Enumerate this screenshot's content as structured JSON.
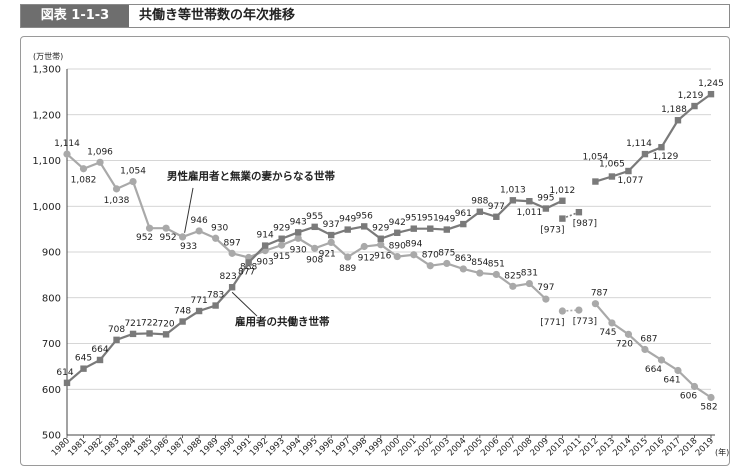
{
  "figure_number": "図表 1-1-3",
  "figure_title": "共働き等世帯数の年次推移",
  "chart_data": {
    "type": "line",
    "ylabel": "(万世帯)",
    "xunit": "(年)",
    "ylim": [
      500,
      1300
    ],
    "yticks": [
      "500",
      "600",
      "700",
      "800",
      "900",
      "1,000",
      "1,100",
      "1,200",
      "1,300"
    ],
    "categories": [
      "1980",
      "1981",
      "1982",
      "1983",
      "1984",
      "1985",
      "1986",
      "1987",
      "1988",
      "1989",
      "1990",
      "1991",
      "1992",
      "1993",
      "1994",
      "1995",
      "1996",
      "1997",
      "1998",
      "1999",
      "2000",
      "2001",
      "2002",
      "2003",
      "2004",
      "2005",
      "2006",
      "2007",
      "2008",
      "2009",
      "2010",
      "2011",
      "2012",
      "2013",
      "2014",
      "2015",
      "2016",
      "2017",
      "2018",
      "2019"
    ],
    "series": [
      {
        "name": "男性雇用者と無業の妻からなる世帯",
        "marker": "circle",
        "color": "#a9a9a9",
        "values": [
          1114,
          1082,
          1096,
          1038,
          1054,
          952,
          952,
          933,
          946,
          930,
          897,
          888,
          903,
          915,
          930,
          908,
          921,
          889,
          912,
          916,
          890,
          894,
          870,
          875,
          863,
          854,
          851,
          825,
          831,
          797,
          null,
          null,
          787,
          745,
          720,
          687,
          664,
          641,
          606,
          582
        ],
        "labels": [
          "1,114",
          "1,082",
          "1,096",
          "1,038",
          "1,054",
          "952",
          "952",
          "933",
          "946",
          "930",
          "897",
          "888",
          "903",
          "915",
          "930",
          "908",
          "921",
          "889",
          "912",
          "916",
          "890",
          "894",
          "870",
          "875",
          "863",
          "854",
          "851",
          "825",
          "831",
          "797",
          "",
          "",
          "787",
          "745",
          "720",
          "687",
          "664",
          "641",
          "606",
          "582"
        ],
        "bracketed": [
          {
            "year": "2010",
            "value": 771,
            "label": "[771]"
          },
          {
            "year": "2011",
            "value": 773,
            "label": "[773]"
          }
        ]
      },
      {
        "name": "雇用者の共働き世帯",
        "marker": "square",
        "color": "#7a7a7a",
        "values": [
          614,
          645,
          664,
          708,
          721,
          722,
          720,
          748,
          771,
          783,
          823,
          877,
          914,
          929,
          943,
          955,
          937,
          949,
          956,
          929,
          942,
          951,
          951,
          949,
          961,
          988,
          977,
          1013,
          1011,
          995,
          1012,
          null,
          1054,
          1065,
          1077,
          1114,
          1129,
          1188,
          1219,
          1245
        ],
        "labels": [
          "614",
          "645",
          "664",
          "708",
          "721",
          "722",
          "720",
          "748",
          "771",
          "783",
          "823",
          "877",
          "914",
          "929",
          "943",
          "955",
          "937",
          "949",
          "956",
          "929",
          "942",
          "951",
          "951",
          "949",
          "961",
          "988",
          "977",
          "1,013",
          "1,011",
          "995",
          "1,012",
          "",
          "1,054",
          "1,065",
          "1,077",
          "1,114",
          "1,129",
          "1,188",
          "1,219",
          "1,245"
        ],
        "bracketed": [
          {
            "year": "2010",
            "value": 973,
            "label": "[973]"
          },
          {
            "year": "2011",
            "value": 987,
            "label": "[987]"
          }
        ]
      }
    ]
  }
}
